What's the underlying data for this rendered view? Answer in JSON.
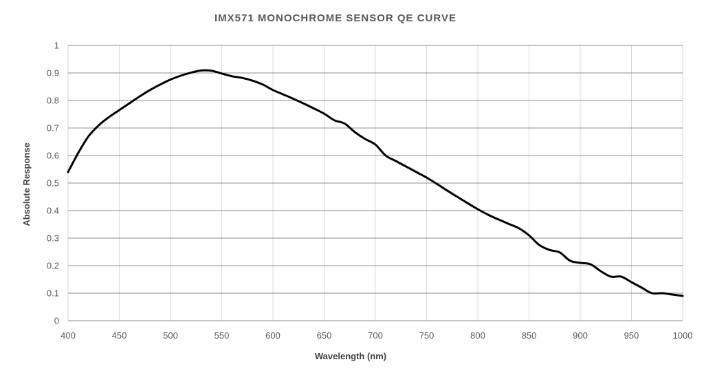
{
  "chart_data": {
    "type": "line",
    "title": "IMX571 MONOCHROME SENSOR QE CURVE",
    "xlabel": "Wavelength (nm)",
    "ylabel": "Absolute Response",
    "xlim": [
      400,
      1000
    ],
    "ylim": [
      0,
      1
    ],
    "x_ticks": [
      400,
      450,
      500,
      550,
      600,
      650,
      700,
      750,
      800,
      850,
      900,
      950,
      1000
    ],
    "y_ticks": [
      0,
      0.1,
      0.2,
      0.3,
      0.4,
      0.5,
      0.6,
      0.7,
      0.8,
      0.9,
      1
    ],
    "grid": true,
    "legend": "none",
    "series": [
      {
        "color": "#000000",
        "x": [
          400,
          410,
          420,
          430,
          440,
          450,
          460,
          470,
          480,
          490,
          500,
          510,
          520,
          530,
          540,
          550,
          560,
          570,
          580,
          590,
          600,
          610,
          620,
          630,
          640,
          650,
          660,
          670,
          680,
          690,
          700,
          710,
          720,
          730,
          740,
          750,
          760,
          770,
          780,
          790,
          800,
          810,
          820,
          830,
          840,
          850,
          860,
          870,
          880,
          890,
          900,
          910,
          920,
          930,
          940,
          950,
          960,
          970,
          980,
          990,
          1000
        ],
        "y": [
          0.54,
          0.61,
          0.67,
          0.71,
          0.74,
          0.765,
          0.79,
          0.815,
          0.838,
          0.858,
          0.876,
          0.89,
          0.901,
          0.909,
          0.908,
          0.898,
          0.888,
          0.882,
          0.872,
          0.858,
          0.838,
          0.822,
          0.806,
          0.789,
          0.771,
          0.752,
          0.728,
          0.716,
          0.685,
          0.66,
          0.64,
          0.6,
          0.58,
          0.56,
          0.54,
          0.52,
          0.497,
          0.473,
          0.45,
          0.427,
          0.405,
          0.385,
          0.368,
          0.352,
          0.336,
          0.31,
          0.275,
          0.257,
          0.248,
          0.218,
          0.21,
          0.205,
          0.18,
          0.16,
          0.16,
          0.14,
          0.12,
          0.1,
          0.1,
          0.095,
          0.09
        ]
      }
    ]
  }
}
